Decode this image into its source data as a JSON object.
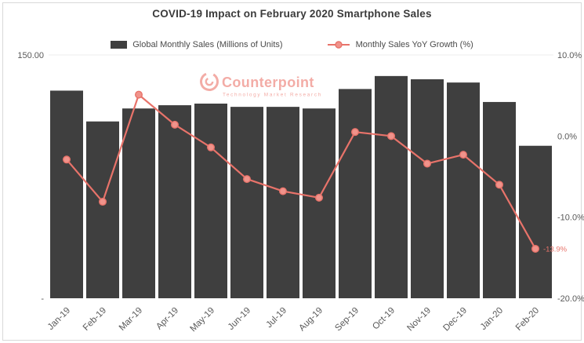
{
  "chart_data": {
    "type": "bar",
    "subtype": "combo-bar-line-dual-axis",
    "title": "COVID-19 Impact on February 2020 Smartphone Sales",
    "categories": [
      "Jan-19",
      "Feb-19",
      "Mar-19",
      "Apr-19",
      "May-19",
      "Jun-19",
      "Jul-19",
      "Aug-19",
      "Sep-19",
      "Oct-19",
      "Nov-19",
      "Dec-19",
      "Jan-20",
      "Feb-20"
    ],
    "series": [
      {
        "name": "Global Monthly Sales (Millions of Units)",
        "type": "bar",
        "axis": "left",
        "values": [
          128,
          109,
          117,
          119,
          120,
          118,
          118,
          117,
          129,
          137,
          135,
          133,
          121,
          94
        ]
      },
      {
        "name": "Monthly Sales YoY Growth (%)",
        "type": "line",
        "axis": "right",
        "values": [
          -2.9,
          -8.1,
          5.1,
          1.4,
          -1.4,
          -5.3,
          -6.8,
          -7.6,
          0.5,
          0.0,
          -3.4,
          -2.3,
          -6.0,
          -13.9
        ]
      }
    ],
    "left_axis": {
      "min": 0,
      "max": 150,
      "ticks": [
        {
          "value": 150,
          "label": "150.00"
        },
        {
          "value": 0,
          "label": "-"
        }
      ]
    },
    "right_axis": {
      "min": -20,
      "max": 10,
      "ticks": [
        {
          "value": 10,
          "label": "10.0%"
        },
        {
          "value": 0,
          "label": "0.0%"
        },
        {
          "value": -10,
          "label": "-10.0%"
        },
        {
          "value": -20,
          "label": "-20.0%"
        }
      ]
    },
    "annotation": {
      "text": "-13.9%",
      "series": 1,
      "index": 13
    },
    "legend_position": "top",
    "grid": "none",
    "watermark": {
      "brand": "Counterpoint",
      "tagline": "Technology Market Research"
    }
  },
  "legend": {
    "bars": "Global Monthly Sales (Millions of Units)",
    "line": "Monthly Sales YoY Growth (%)"
  },
  "colors": {
    "bar": "#3f3f3f",
    "line": "#e8736a",
    "marker_fill": "#f0938b",
    "annotation": "#e8736a",
    "watermark": "#f3aca6",
    "axis_text": "#595959",
    "title": "#3b3b3b",
    "border": "#d9d9d9",
    "gridline": "#ececec"
  }
}
